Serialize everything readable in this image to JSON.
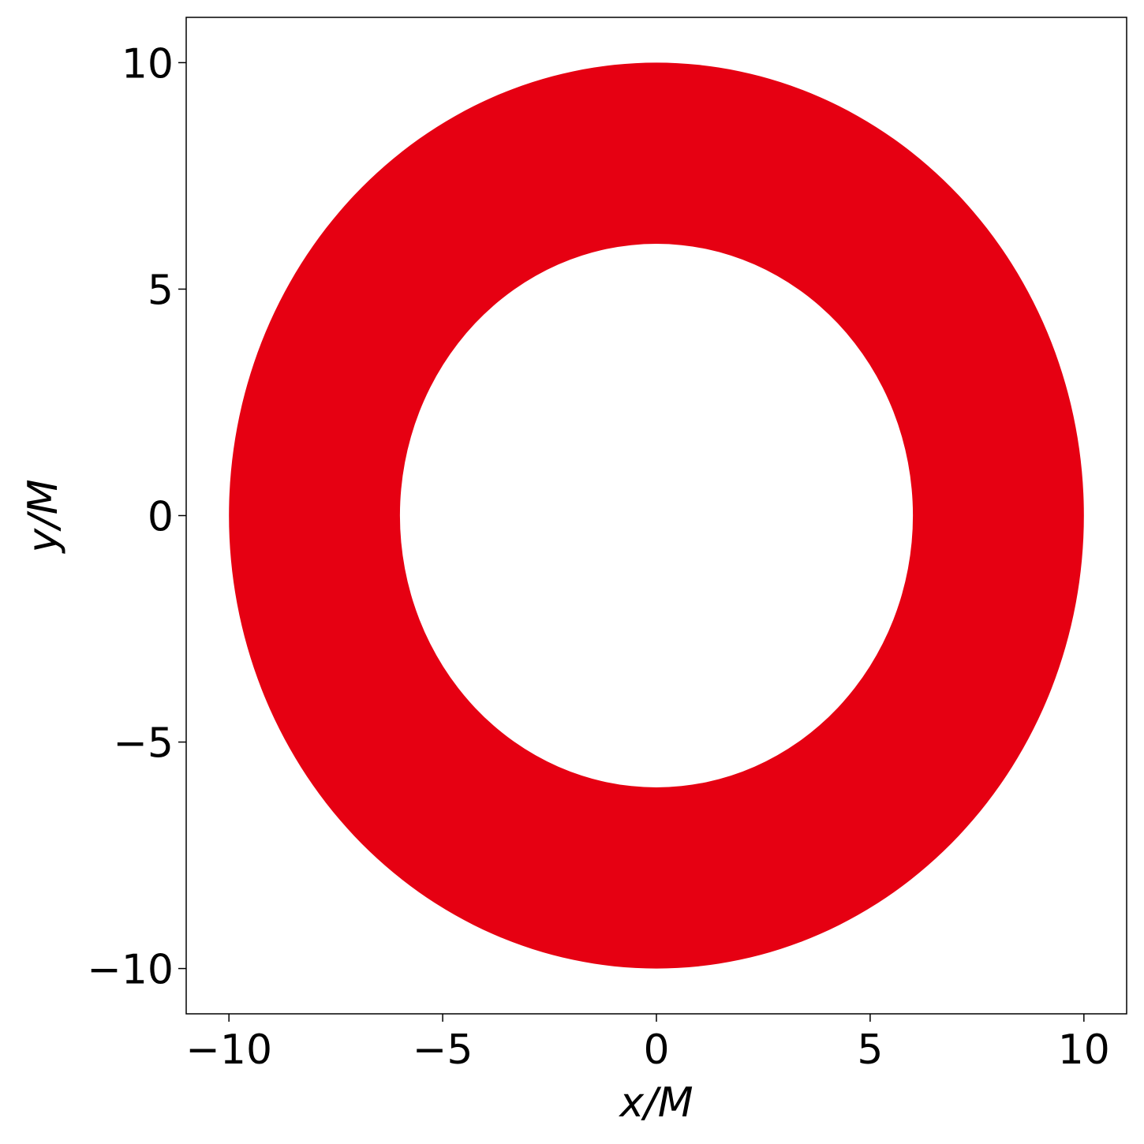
{
  "chart_data": {
    "type": "area",
    "title": "",
    "xlabel": "x/M",
    "ylabel": "y/M",
    "xlim": [
      -11,
      11
    ],
    "ylim": [
      -11,
      11
    ],
    "xticks": [
      -10,
      -5,
      0,
      5,
      10
    ],
    "yticks": [
      -10,
      -5,
      0,
      5,
      10
    ],
    "xtick_labels": [
      "−10",
      "−5",
      "0",
      "5",
      "10"
    ],
    "ytick_labels": [
      "−10",
      "−5",
      "0",
      "5",
      "10"
    ],
    "grid": false,
    "series": [
      {
        "shape": "annulus",
        "center": [
          0,
          0
        ],
        "inner_radius": 6,
        "outer_radius": 10,
        "color": "#E60012"
      }
    ]
  }
}
